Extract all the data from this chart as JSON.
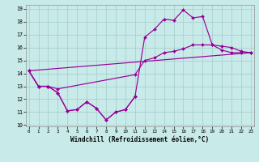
{
  "xlabel": "Windchill (Refroidissement éolien,°C)",
  "background_color": "#c8eae8",
  "line_color": "#990099",
  "xlim": [
    0,
    23
  ],
  "ylim": [
    10,
    19
  ],
  "xticks": [
    0,
    1,
    2,
    3,
    4,
    5,
    6,
    7,
    8,
    9,
    10,
    11,
    12,
    13,
    14,
    15,
    16,
    17,
    18,
    19,
    20,
    21,
    22,
    23
  ],
  "yticks": [
    10,
    11,
    12,
    13,
    14,
    15,
    16,
    17,
    18,
    19
  ],
  "line1_x": [
    0,
    1,
    2,
    3,
    4,
    5,
    6,
    7,
    8,
    9,
    10,
    11,
    12,
    13,
    14,
    15,
    16,
    17,
    18,
    19,
    20,
    21,
    22,
    23
  ],
  "line1_y": [
    14.2,
    13.0,
    13.0,
    12.5,
    11.1,
    11.2,
    11.8,
    11.3,
    10.4,
    11.0,
    11.2,
    12.2,
    16.8,
    17.4,
    18.2,
    18.1,
    18.9,
    18.3,
    18.4,
    16.2,
    15.8,
    15.6,
    15.6,
    15.6
  ],
  "line2_x": [
    0,
    1,
    2,
    3,
    11,
    12,
    13,
    14,
    15,
    16,
    17,
    18,
    19,
    20,
    21,
    22,
    23
  ],
  "line2_y": [
    14.2,
    13.0,
    13.0,
    12.8,
    13.9,
    15.0,
    15.2,
    15.6,
    15.7,
    15.9,
    16.2,
    16.2,
    16.2,
    16.1,
    16.0,
    15.7,
    15.6
  ],
  "line3_x": [
    0,
    23
  ],
  "line3_y": [
    14.2,
    15.6
  ],
  "line4_x": [
    0,
    1,
    2,
    3,
    4,
    5,
    6,
    7,
    8,
    9,
    10,
    11
  ],
  "line4_y": [
    14.2,
    13.0,
    13.0,
    12.5,
    11.1,
    11.2,
    11.8,
    11.3,
    10.4,
    11.0,
    11.2,
    12.2
  ]
}
